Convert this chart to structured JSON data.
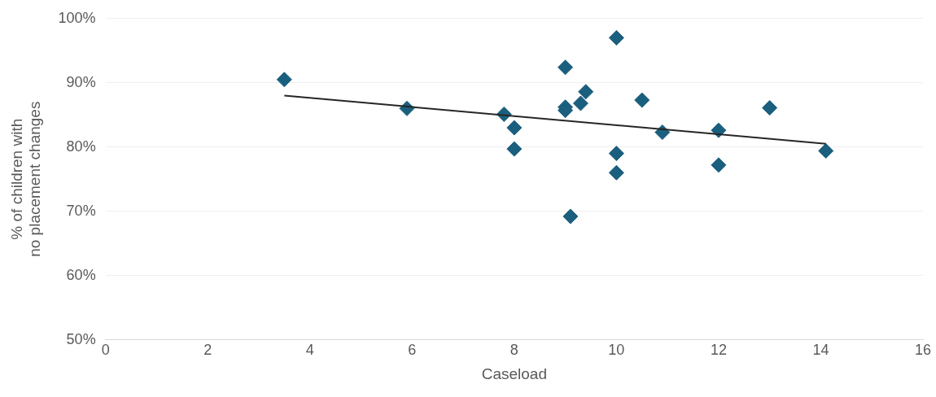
{
  "chart_data": {
    "type": "scatter",
    "xlabel": "Caseload",
    "ylabel": "% of children with no placement changes",
    "xlim": [
      0,
      16
    ],
    "xticks": [
      0,
      2,
      4,
      6,
      8,
      10,
      12,
      14,
      16
    ],
    "ylim": [
      50,
      100
    ],
    "yticks": [
      {
        "value": 50,
        "label": "50%"
      },
      {
        "value": 60,
        "label": "60%"
      },
      {
        "value": 70,
        "label": "70%"
      },
      {
        "value": 80,
        "label": "80%"
      },
      {
        "value": 90,
        "label": "90%"
      },
      {
        "value": 100,
        "label": "100%"
      }
    ],
    "grid": "y",
    "legend": false,
    "marker": "diamond",
    "series": [
      {
        "color": "#1b5f7e",
        "x": [
          3.5,
          5.9,
          7.8,
          8.0,
          8.0,
          9.0,
          9.0,
          9.0,
          9.1,
          9.3,
          9.4,
          10.0,
          10.0,
          10.0,
          10.5,
          10.9,
          12.0,
          12.0,
          13.0,
          14.1
        ],
        "values": [
          90.5,
          86,
          85.1,
          83,
          79.7,
          92.4,
          86.2,
          85.7,
          69.2,
          86.8,
          88.6,
          97,
          79,
          76,
          87.3,
          82.3,
          82.6,
          77.2,
          86.1,
          79.4
        ]
      },
      {
        "type": "line",
        "color": "#262626",
        "marker": "none",
        "x": [
          3.5,
          14.1
        ],
        "values": [
          88,
          80.5
        ]
      }
    ]
  }
}
